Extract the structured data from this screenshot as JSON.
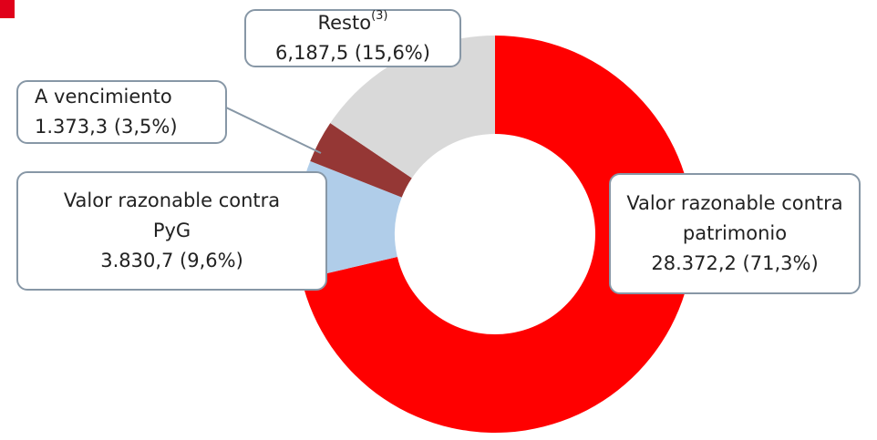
{
  "chart_data": {
    "type": "donut",
    "categories": [
      "Valor razonable contra patrimonio",
      "Valor razonable contra PyG",
      "A vencimiento",
      "Resto"
    ],
    "footnote_markers": {
      "3": "(3)"
    },
    "values": [
      28372.2,
      3830.7,
      1373.3,
      6187.5
    ],
    "value_labels": [
      "28.372,2 (71,3%)",
      "3.830,7 (9,6%)",
      "1.373,3 (3,5%)",
      "6,187,5 (15,6%)"
    ],
    "colors": [
      "#ff0000",
      "#b0cde9",
      "#953735",
      "#d9d9d9"
    ]
  }
}
